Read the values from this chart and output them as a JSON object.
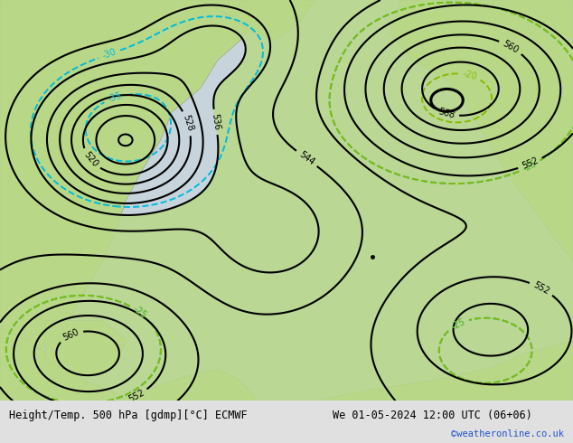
{
  "title_left": "Height/Temp. 500 hPa [gdmp][°C] ECMWF",
  "title_right": "We 01-05-2024 12:00 UTC (06+06)",
  "credit": "©weatheronline.co.uk",
  "land_color": "#b8d888",
  "sea_color": "#c8d4dc",
  "z500_color": "#000000",
  "temp_cyan_color": "#00bbdd",
  "temp_green_color": "#88bb00",
  "temp_orange_color": "#ee8800",
  "credit_color": "#2255cc",
  "bottom_bar_color": "#e0e0e0",
  "figsize": [
    6.34,
    4.9
  ],
  "dpi": 100
}
